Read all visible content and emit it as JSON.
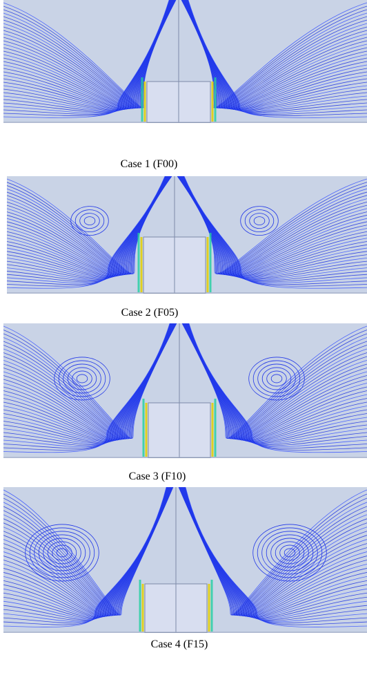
{
  "panels": [
    {
      "caption": "Case 1 (F00)"
    },
    {
      "caption": "Case 2 (F05)"
    },
    {
      "caption": "Case 3 (F10)"
    },
    {
      "caption": "Case 4 (F15)"
    }
  ]
}
